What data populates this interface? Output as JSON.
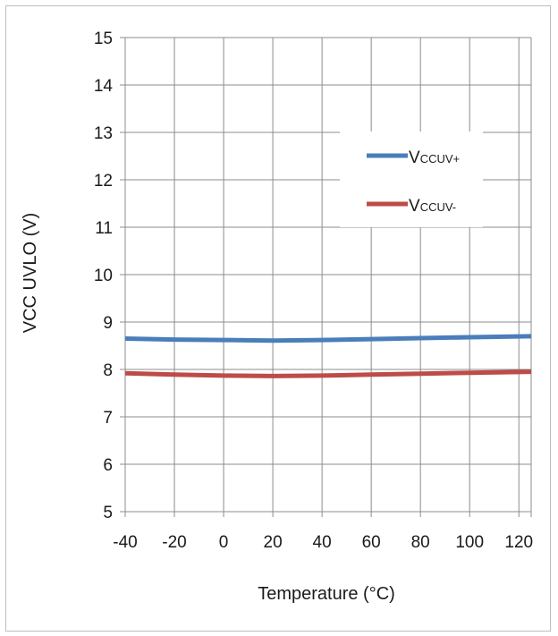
{
  "chart_data": {
    "type": "line",
    "title": "",
    "xlabel": "Temperature (°C)",
    "ylabel": "VCC UVLO (V)",
    "xlim": [
      -40,
      125
    ],
    "ylim": [
      5,
      15
    ],
    "xticks": [
      -40,
      -20,
      0,
      20,
      40,
      60,
      80,
      100,
      120
    ],
    "yticks": [
      5,
      6,
      7,
      8,
      9,
      10,
      11,
      12,
      13,
      14,
      15
    ],
    "grid": true,
    "legend_position": "top-right",
    "series": [
      {
        "name_main": "V",
        "name_sub": "CCUV+",
        "color": "#4a7ebb",
        "x": [
          -40,
          -20,
          0,
          20,
          40,
          60,
          80,
          100,
          125
        ],
        "y": [
          8.65,
          8.63,
          8.62,
          8.61,
          8.62,
          8.64,
          8.66,
          8.68,
          8.7
        ]
      },
      {
        "name_main": "V",
        "name_sub": "CCUV-",
        "color": "#be4b48",
        "x": [
          -40,
          -20,
          0,
          20,
          40,
          60,
          80,
          100,
          125
        ],
        "y": [
          7.92,
          7.89,
          7.87,
          7.86,
          7.87,
          7.89,
          7.91,
          7.93,
          7.95
        ]
      }
    ]
  }
}
